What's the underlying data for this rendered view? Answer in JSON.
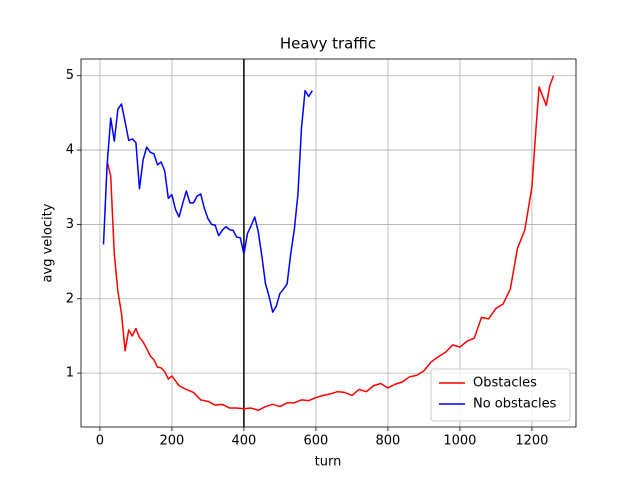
{
  "chart_data": {
    "type": "line",
    "title": "Heavy traffic",
    "x_label": "turn",
    "y_label": "avg velocity",
    "xlim": [
      -52.5,
      1322.5
    ],
    "ylim": [
      0.275,
      5.225
    ],
    "xticks": [
      0,
      200,
      400,
      600,
      800,
      1000,
      1200
    ],
    "yticks": [
      1,
      2,
      3,
      4,
      5
    ],
    "grid": true,
    "legend": "lower right",
    "vlines": [
      {
        "x": 400,
        "color": "#000000"
      }
    ],
    "series": [
      {
        "name": "Obstacles",
        "color": "#ff0000",
        "x": [
          20,
          30,
          40,
          50,
          60,
          70,
          80,
          90,
          100,
          110,
          120,
          130,
          140,
          150,
          160,
          170,
          180,
          190,
          200,
          220,
          240,
          260,
          280,
          300,
          320,
          340,
          360,
          380,
          400,
          420,
          440,
          460,
          480,
          500,
          520,
          540,
          560,
          580,
          600,
          620,
          640,
          660,
          680,
          700,
          720,
          740,
          760,
          780,
          800,
          820,
          840,
          860,
          880,
          900,
          920,
          940,
          960,
          980,
          1000,
          1020,
          1040,
          1060,
          1080,
          1100,
          1120,
          1140,
          1160,
          1180,
          1200,
          1210,
          1220,
          1240,
          1250,
          1260
        ],
        "values": [
          3.85,
          3.65,
          2.6,
          2.1,
          1.8,
          1.3,
          1.58,
          1.5,
          1.6,
          1.48,
          1.42,
          1.33,
          1.23,
          1.18,
          1.08,
          1.07,
          1.02,
          0.92,
          0.96,
          0.83,
          0.78,
          0.74,
          0.64,
          0.62,
          0.57,
          0.58,
          0.53,
          0.53,
          0.52,
          0.53,
          0.5,
          0.55,
          0.58,
          0.55,
          0.6,
          0.6,
          0.64,
          0.63,
          0.67,
          0.7,
          0.72,
          0.75,
          0.74,
          0.7,
          0.78,
          0.75,
          0.83,
          0.86,
          0.8,
          0.85,
          0.88,
          0.95,
          0.97,
          1.03,
          1.15,
          1.22,
          1.28,
          1.38,
          1.35,
          1.43,
          1.47,
          1.75,
          1.73,
          1.87,
          1.93,
          2.13,
          2.68,
          2.92,
          3.5,
          4.2,
          4.85,
          4.6,
          4.87,
          5.0
        ]
      },
      {
        "name": "No obstacles",
        "color": "#0000ff",
        "x": [
          10,
          20,
          30,
          40,
          50,
          60,
          70,
          80,
          90,
          100,
          110,
          120,
          130,
          140,
          150,
          160,
          170,
          180,
          190,
          200,
          210,
          220,
          230,
          240,
          250,
          260,
          270,
          280,
          290,
          300,
          310,
          320,
          330,
          340,
          350,
          360,
          370,
          380,
          390,
          400,
          410,
          420,
          430,
          440,
          450,
          460,
          470,
          480,
          490,
          500,
          510,
          520,
          530,
          540,
          550,
          560,
          570,
          580,
          590
        ],
        "values": [
          2.73,
          3.8,
          4.43,
          4.12,
          4.55,
          4.62,
          4.38,
          4.13,
          4.15,
          4.1,
          3.48,
          3.87,
          4.04,
          3.97,
          3.95,
          3.8,
          3.84,
          3.72,
          3.35,
          3.4,
          3.2,
          3.1,
          3.28,
          3.45,
          3.29,
          3.29,
          3.38,
          3.41,
          3.22,
          3.08,
          3.0,
          2.99,
          2.85,
          2.92,
          2.97,
          2.93,
          2.92,
          2.83,
          2.82,
          2.6,
          2.88,
          2.98,
          3.1,
          2.9,
          2.57,
          2.2,
          2.03,
          1.82,
          1.9,
          2.07,
          2.13,
          2.2,
          2.6,
          2.93,
          3.4,
          4.3,
          4.8,
          4.72,
          4.8
        ]
      }
    ]
  }
}
